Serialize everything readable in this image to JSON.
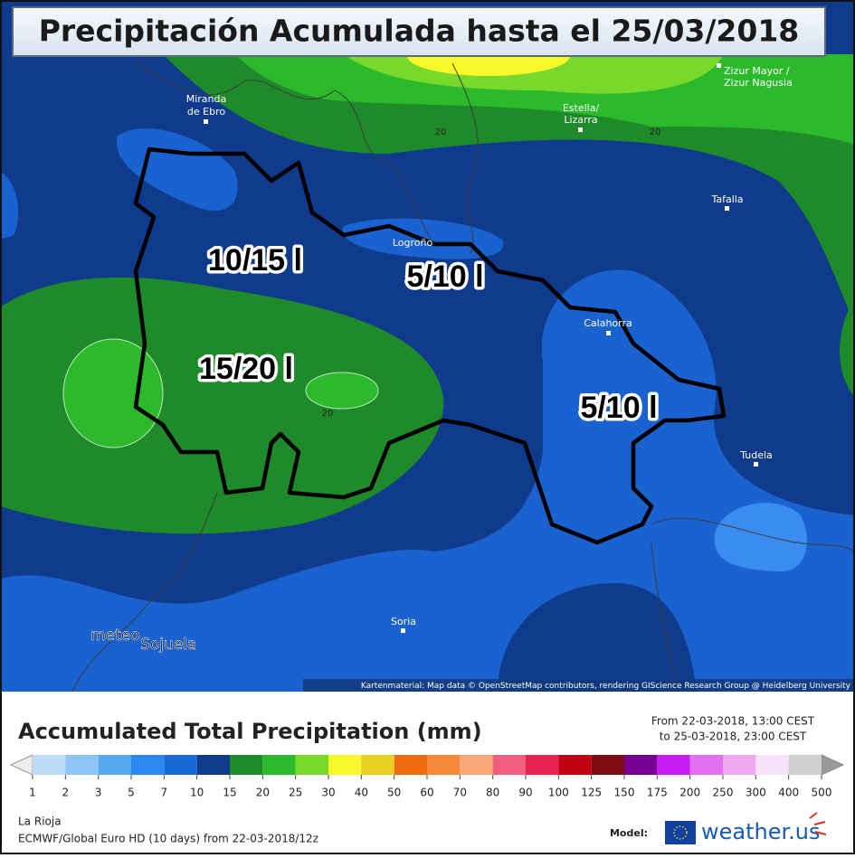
{
  "header": {
    "title": "Precipitación Acumulada hasta el 25/03/2018"
  },
  "map": {
    "places": [
      {
        "lines": [
          "Miranda",
          "de Ebro"
        ]
      },
      {
        "lines": [
          "Estella/",
          "Lizarra"
        ]
      },
      {
        "lines": [
          "Zizur Mayor /",
          "Zizur Nagusia"
        ]
      },
      {
        "lines": [
          "Tafalla"
        ]
      },
      {
        "lines": [
          "Logroño"
        ]
      },
      {
        "lines": [
          "Calahorra"
        ]
      },
      {
        "lines": [
          "Tudela"
        ]
      },
      {
        "lines": [
          "Soria"
        ]
      }
    ],
    "contour_labels": [
      20,
      20,
      20
    ],
    "region_labels": [
      "10/15 l",
      "5/10 l",
      "15/20 l",
      "5/10 l"
    ],
    "logo": {
      "line1": "meteo",
      "line2": "Sojuela"
    },
    "attribution": "Kartenmaterial: Map data © OpenStreetMap contributors, rendering GIScience Research Group @ Heidelberg University"
  },
  "legend": {
    "title": "Accumulated Total Precipitation (mm)",
    "from": "From 22-03-2018, 13:00 CEST",
    "to": "to 25-03-2018, 23:00 CEST",
    "steps": [
      1,
      2,
      3,
      5,
      7,
      10,
      15,
      20,
      25,
      30,
      40,
      50,
      60,
      70,
      80,
      90,
      100,
      125,
      150,
      175,
      200,
      250,
      300,
      400,
      500
    ],
    "colors": [
      "#bcdcf8",
      "#8cc4f6",
      "#58a8f2",
      "#2a88ee",
      "#1a6ad6",
      "#103a8c",
      "#1f8a2a",
      "#2cba2c",
      "#78d82c",
      "#f8f82a",
      "#e6d020",
      "#ee6a10",
      "#f68a3a",
      "#f8a878",
      "#f0607e",
      "#e8224e",
      "#c00012",
      "#7e0a14",
      "#780090",
      "#c41cf0",
      "#e070f0",
      "#f0a8f0",
      "#f8e2f8",
      "#d0d0d0"
    ],
    "region": "La Rioja",
    "model_run": "ECMWF/Global Euro HD (10 days) from 22-03-2018/12z",
    "model_label": "Model:",
    "brand": "weather.us"
  }
}
